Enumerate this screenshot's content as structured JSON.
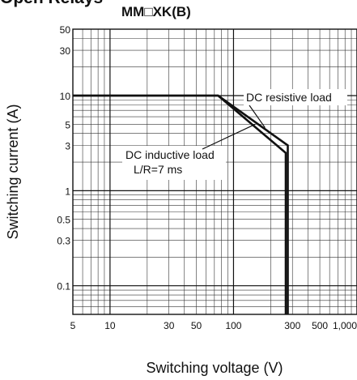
{
  "page_title": "Open Relays",
  "chart_title": "MM□XK(B)",
  "chart_data": {
    "type": "line",
    "title": "MM□XK(B)",
    "xlabel": "Switching voltage (V)",
    "ylabel": "Switching current (A)",
    "x_scale": "log",
    "y_scale": "log",
    "xlim": [
      5,
      1000
    ],
    "ylim": [
      0.05,
      50
    ],
    "grid": true,
    "x_ticks": [
      5,
      10,
      30,
      50,
      100,
      300,
      500,
      1000
    ],
    "x_tick_labels": [
      "5",
      "10",
      "30",
      "50",
      "100",
      "300",
      "500",
      "1,000"
    ],
    "y_ticks": [
      0.1,
      0.3,
      0.5,
      1,
      3,
      5,
      10,
      30,
      50
    ],
    "y_tick_labels": [
      "0.1",
      "0.3",
      "0.5",
      "1",
      "3",
      "5",
      "10",
      "30",
      "50"
    ],
    "series": [
      {
        "name": "DC resistive load",
        "x": [
          5,
          75,
          275,
          275
        ],
        "y": [
          10,
          10,
          3,
          0.05
        ]
      },
      {
        "name": "DC inductive load L/R=7 ms",
        "x": [
          5,
          75,
          265,
          265
        ],
        "y": [
          10,
          10,
          2.5,
          0.05
        ]
      }
    ],
    "annotations": [
      {
        "text": "DC resistive load",
        "target": "DC resistive load"
      },
      {
        "text": "DC inductive load",
        "line2": "L/R=7 ms",
        "target": "DC inductive load L/R=7 ms"
      }
    ]
  }
}
